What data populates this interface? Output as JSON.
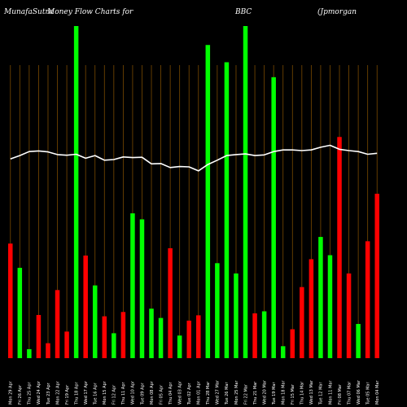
{
  "header": {
    "site": "MunafaSutra",
    "title": "Money Flow  Charts for",
    "symbol": "BBC",
    "company": "(Jpmorgan"
  },
  "colors": {
    "background": "#000000",
    "up": "#00ff00",
    "down": "#ff0000",
    "line": "#ffffff",
    "grid": "#7a4a00"
  },
  "chart_data": {
    "type": "bar",
    "title": "Money Flow  Charts for BBC",
    "xlabel": "",
    "ylabel": "",
    "grid": true,
    "ylim": [
      0,
      100
    ],
    "categories": [
      "Mon 29 Apr",
      "Fri 26 Apr",
      "Thu 25 Apr",
      "Wed 24 Apr",
      "Tue 23 Apr",
      "Mon 22 Apr",
      "Fri 19 Apr",
      "Thu 18 Apr",
      "Wed 17 Apr",
      "Tue 16 Apr",
      "Mon 15 Apr",
      "Fri 12 Apr",
      "Thu 11 Apr",
      "Wed 10 Apr",
      "Tue 09 Apr",
      "Mon 08 Apr",
      "Fri 05 Apr",
      "Thu 04 Apr",
      "Wed 03 Apr",
      "Tue 02 Apr",
      "Mon 01 Apr",
      "Thu 28 Mar",
      "Wed 27 Mar",
      "Tue 26 Mar",
      "Mon 25 Mar",
      "Fri 22 Mar",
      "Thu 21 Mar",
      "Wed 20 Mar",
      "Tue 19 Mar",
      "Mon 18 Mar",
      "Fri 15 Mar",
      "Thu 14 Mar",
      "Wed 13 Mar",
      "Tue 12 Mar",
      "Mon 11 Mar",
      "Fri 08 Mar",
      "Thu 07 Mar",
      "Wed 06 Mar",
      "Tue 05 Mar",
      "Mon 04 Mar"
    ],
    "bars": {
      "values": [
        34.5,
        27.2,
        2.7,
        13.0,
        4.5,
        20.5,
        8.0,
        100,
        30.9,
        21.9,
        12.6,
        7.5,
        13.9,
        43.6,
        41.8,
        14.9,
        12.1,
        33.1,
        6.8,
        11.3,
        12.9,
        94.3,
        28.6,
        89.1,
        25.5,
        100,
        13.5,
        14.1,
        84.6,
        3.6,
        8.7,
        21.4,
        29.8,
        36.5,
        31.0,
        66.6,
        25.5,
        10.3,
        35.2,
        49.5
      ],
      "directions": [
        "down",
        "up",
        "up",
        "down",
        "down",
        "down",
        "down",
        "up",
        "down",
        "up",
        "down",
        "up",
        "down",
        "up",
        "up",
        "up",
        "up",
        "down",
        "up",
        "down",
        "down",
        "up",
        "up",
        "up",
        "up",
        "up",
        "down",
        "up",
        "up",
        "up",
        "down",
        "down",
        "down",
        "up",
        "up",
        "down",
        "down",
        "up",
        "down",
        "down"
      ]
    },
    "line": {
      "values": [
        60.0,
        61.0,
        62.2,
        62.4,
        62.1,
        61.3,
        61.1,
        61.4,
        60.2,
        61.0,
        59.6,
        59.8,
        60.6,
        60.4,
        60.5,
        58.5,
        58.6,
        57.4,
        57.7,
        57.6,
        56.4,
        58.3,
        59.6,
        61.0,
        61.3,
        61.5,
        61.0,
        61.2,
        62.2,
        62.7,
        62.7,
        62.5,
        62.7,
        63.5,
        64.1,
        62.9,
        62.5,
        62.2,
        61.4,
        61.7
      ]
    }
  }
}
